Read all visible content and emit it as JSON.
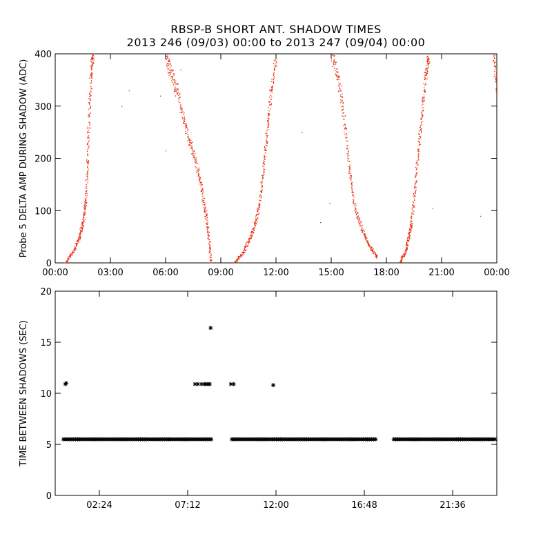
{
  "title": "RBSP-B SHORT ANT. SHADOW TIMES",
  "subtitle": "2013 246 (09/03) 00:00 to 2013 247 (09/04) 00:00",
  "colors": {
    "points_top": "#e8280a",
    "points_bottom": "#000000",
    "axis": "#000000",
    "background": "#ffffff"
  },
  "chart_data": [
    {
      "type": "scatter",
      "ylabel": "Probe 5 DELTA AMP DURING SHADOW (ADC)",
      "xlabel": "",
      "xlim_hours": [
        0,
        24
      ],
      "ylim": [
        0,
        400
      ],
      "x_tick_labels": [
        "00:00",
        "03:00",
        "06:00",
        "09:00",
        "12:00",
        "15:00",
        "18:00",
        "21:00",
        "00:00"
      ],
      "x_tick_hours": [
        0,
        3,
        6,
        9,
        12,
        15,
        18,
        21,
        24
      ],
      "y_tick_labels": [
        "0",
        "100",
        "200",
        "300",
        "400"
      ],
      "y_tick_values": [
        0,
        100,
        200,
        300,
        400
      ],
      "series": [
        {
          "segments": [
            {
              "t": [
                0.55,
                1.0,
                1.3,
                1.5,
                1.65,
                1.75,
                1.85,
                1.95,
                2.05
              ],
              "y": [
                0,
                25,
                50,
                80,
                120,
                200,
                300,
                370,
                400
              ]
            },
            {
              "t": [
                6.0,
                6.25,
                6.6,
                7.0,
                7.4,
                7.8,
                8.1,
                8.3,
                8.45
              ],
              "y": [
                400,
                370,
                330,
                270,
                220,
                170,
                110,
                60,
                0
              ]
            },
            {
              "t": [
                9.7,
                10.2,
                10.6,
                10.9,
                11.15,
                11.35,
                11.55,
                11.75,
                12.0
              ],
              "y": [
                0,
                20,
                50,
                80,
                130,
                200,
                270,
                340,
                400
              ]
            },
            {
              "t": [
                15.0,
                15.4,
                15.7,
                16.0,
                16.3,
                16.7,
                17.1,
                17.5
              ],
              "y": [
                400,
                350,
                270,
                170,
                100,
                60,
                30,
                10
              ]
            },
            {
              "t": [
                18.7,
                19.0,
                19.2,
                19.35,
                19.55,
                19.75,
                19.95,
                20.15,
                20.3
              ],
              "y": [
                0,
                20,
                50,
                80,
                150,
                230,
                300,
                370,
                400
              ]
            },
            {
              "t": [
                23.8,
                24.0
              ],
              "y": [
                400,
                330
              ]
            }
          ]
        }
      ]
    },
    {
      "type": "scatter",
      "ylabel": "TIME BETWEEN SHADOWS (SEC)",
      "xlabel": "",
      "xlim_hours": [
        0,
        24
      ],
      "ylim": [
        0,
        20
      ],
      "x_tick_labels": [
        "02:24",
        "07:12",
        "12:00",
        "16:48",
        "21:36"
      ],
      "x_tick_hours": [
        2.4,
        7.2,
        12.0,
        16.8,
        21.6
      ],
      "y_tick_labels": [
        "0",
        "5",
        "10",
        "15",
        "20"
      ],
      "y_tick_values": [
        0,
        5,
        10,
        15,
        20
      ],
      "series": [
        {
          "baseline_value": 5.5,
          "baseline_ranges_hours": [
            [
              0.45,
              8.55
            ],
            [
              9.6,
              17.5
            ],
            [
              18.4,
              24.0
            ]
          ],
          "outliers": [
            {
              "t": 0.55,
              "y": 10.9
            },
            {
              "t": 0.6,
              "y": 11.0
            },
            {
              "t": 7.6,
              "y": 10.9
            },
            {
              "t": 7.75,
              "y": 10.9
            },
            {
              "t": 7.95,
              "y": 10.9
            },
            {
              "t": 8.1,
              "y": 10.9
            },
            {
              "t": 8.2,
              "y": 10.9
            },
            {
              "t": 8.3,
              "y": 10.9
            },
            {
              "t": 8.4,
              "y": 10.9
            },
            {
              "t": 8.45,
              "y": 16.4
            },
            {
              "t": 9.55,
              "y": 10.9
            },
            {
              "t": 9.7,
              "y": 10.9
            },
            {
              "t": 11.85,
              "y": 10.8
            }
          ]
        }
      ]
    }
  ]
}
